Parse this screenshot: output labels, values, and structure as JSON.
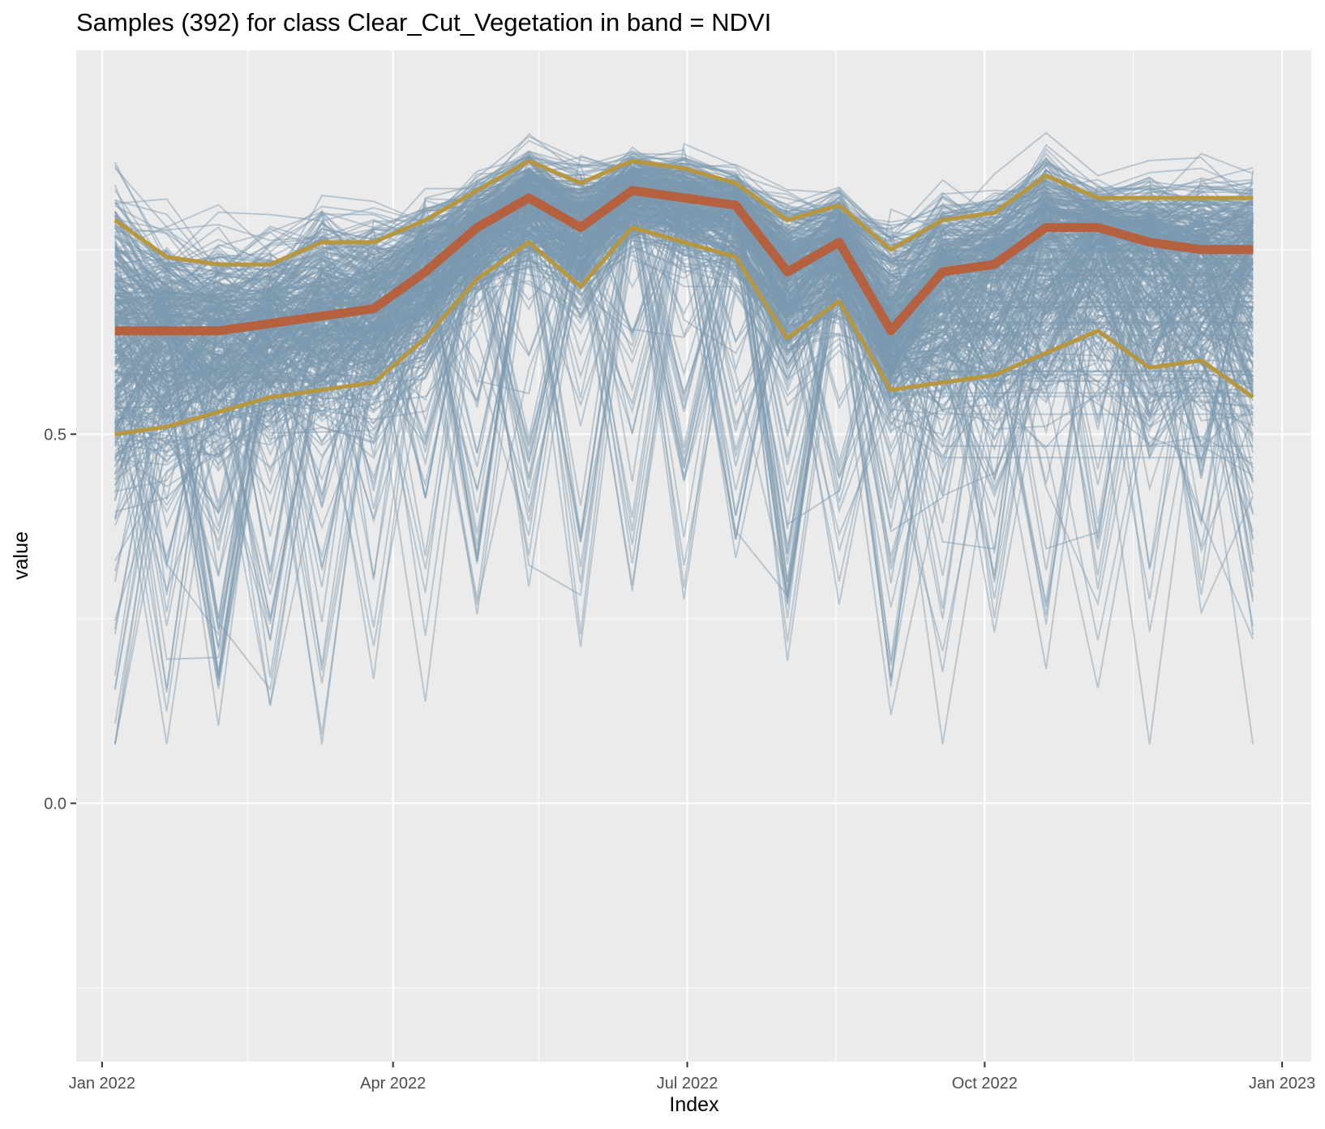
{
  "chart_data": {
    "type": "line",
    "title": "Samples (392) for class Clear_Cut_Vegetation in band = NDVI",
    "xlabel": "Index",
    "ylabel": "value",
    "sample_count": 392,
    "xlim": [
      "2021-12-24",
      "2023-01-10"
    ],
    "ylim": [
      -0.35,
      1.02
    ],
    "x_ticks": [
      {
        "date": "2022-01-01",
        "label": "Jan 2022"
      },
      {
        "date": "2022-04-01",
        "label": "Apr 2022"
      },
      {
        "date": "2022-07-01",
        "label": "Jul 2022"
      },
      {
        "date": "2022-10-01",
        "label": "Oct 2022"
      },
      {
        "date": "2023-01-01",
        "label": "Jan 2023"
      }
    ],
    "x_minor_ticks": [
      "2022-02-15",
      "2022-05-16",
      "2022-08-16",
      "2022-11-16"
    ],
    "y_ticks": [
      {
        "value": 0.0,
        "label": "0.0"
      },
      {
        "value": 0.5,
        "label": "0.5"
      }
    ],
    "y_minor_ticks": [
      -0.25,
      0.25,
      0.75
    ],
    "dates": [
      "2022-01-05",
      "2022-01-21",
      "2022-02-06",
      "2022-02-22",
      "2022-03-10",
      "2022-03-26",
      "2022-04-11",
      "2022-04-27",
      "2022-05-13",
      "2022-05-29",
      "2022-06-14",
      "2022-06-30",
      "2022-07-16",
      "2022-08-01",
      "2022-08-17",
      "2022-09-02",
      "2022-09-18",
      "2022-10-04",
      "2022-10-20",
      "2022-11-05",
      "2022-11-21",
      "2022-12-07",
      "2022-12-23"
    ],
    "series": [
      {
        "name": "median",
        "role": "median",
        "color": "#b5603f",
        "values": [
          0.64,
          0.64,
          0.64,
          0.65,
          0.66,
          0.67,
          0.72,
          0.78,
          0.82,
          0.78,
          0.83,
          0.82,
          0.81,
          0.72,
          0.76,
          0.64,
          0.72,
          0.73,
          0.78,
          0.78,
          0.76,
          0.75,
          0.75
        ]
      },
      {
        "name": "q75",
        "role": "upper quartile",
        "color": "#b8963e",
        "values": [
          0.79,
          0.74,
          0.73,
          0.73,
          0.76,
          0.76,
          0.79,
          0.83,
          0.87,
          0.84,
          0.87,
          0.86,
          0.84,
          0.79,
          0.81,
          0.75,
          0.79,
          0.8,
          0.85,
          0.82,
          0.82,
          0.82,
          0.82
        ]
      },
      {
        "name": "q25",
        "role": "lower quartile",
        "color": "#b8963e",
        "values": [
          0.5,
          0.51,
          0.53,
          0.55,
          0.56,
          0.57,
          0.63,
          0.71,
          0.76,
          0.7,
          0.78,
          0.76,
          0.74,
          0.63,
          0.68,
          0.56,
          0.57,
          0.58,
          0.61,
          0.64,
          0.59,
          0.6,
          0.55
        ]
      }
    ],
    "samples_color": "#7d98b0"
  }
}
